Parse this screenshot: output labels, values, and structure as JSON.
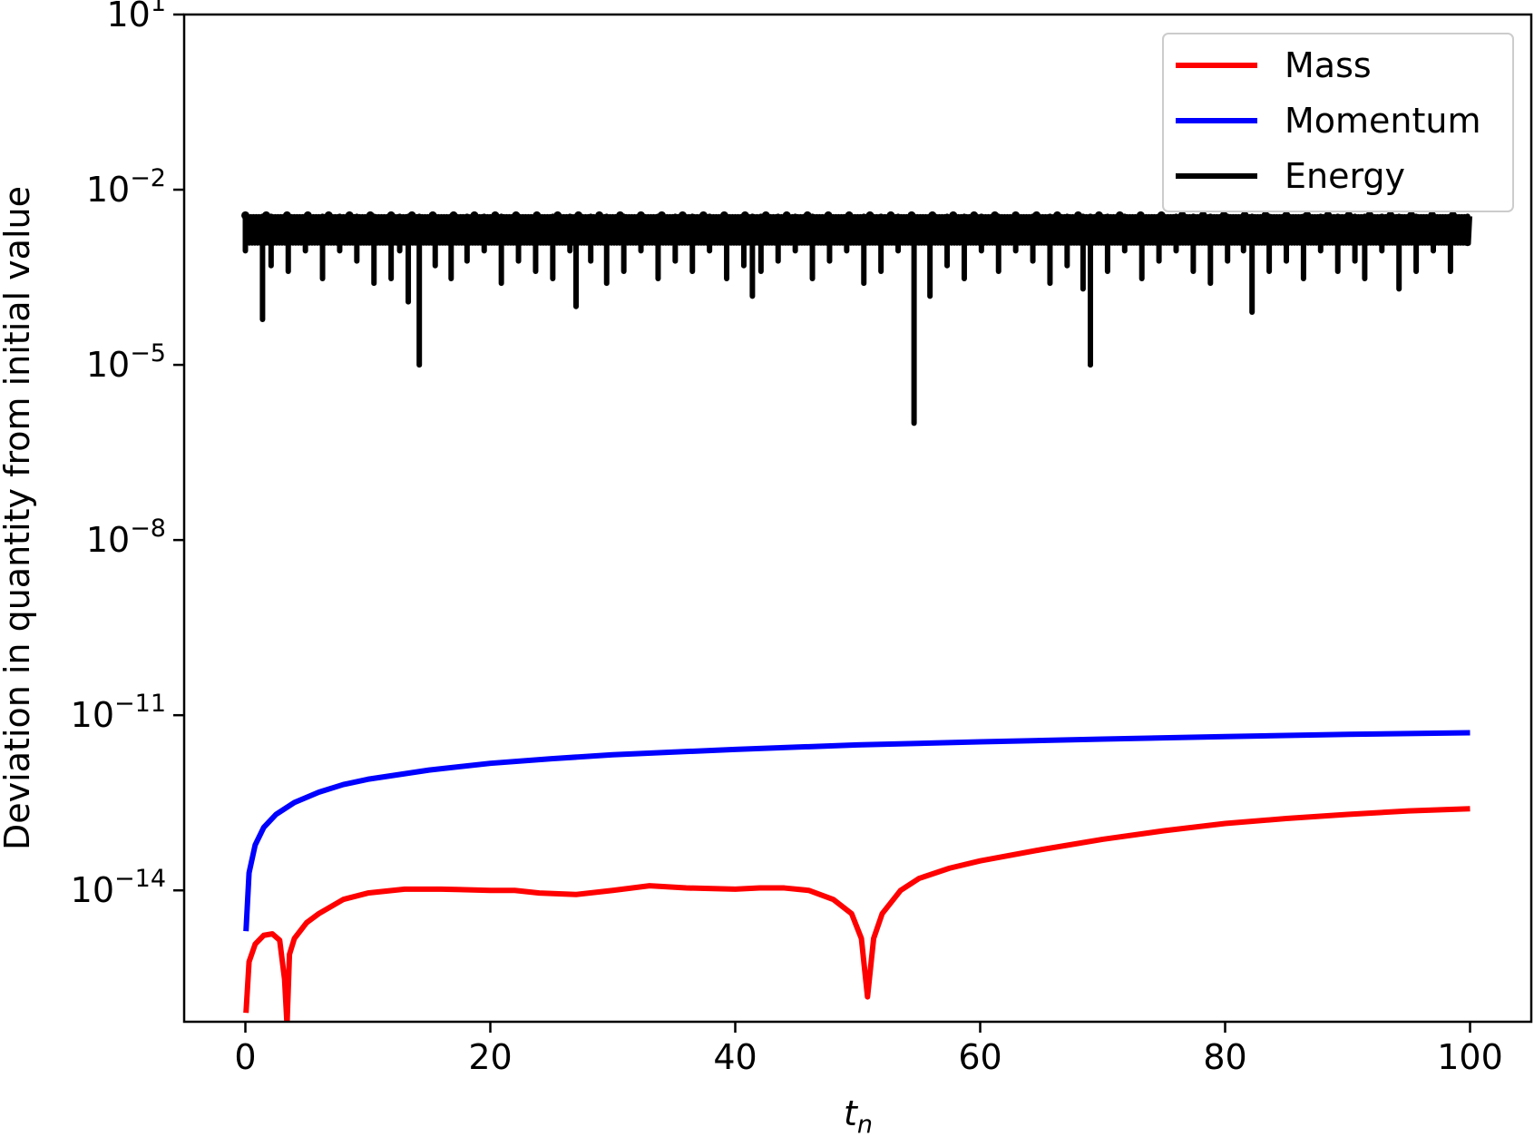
{
  "chart_data": {
    "type": "line",
    "title": "",
    "xlabel": "t",
    "xlabel_subscript": "n",
    "ylabel": "Deviation in quantity from initial value",
    "xlim": [
      -5,
      105
    ],
    "ylim_log10": [
      -16.25,
      1
    ],
    "y_scale": "log",
    "x_ticks": [
      0,
      20,
      40,
      60,
      80,
      100
    ],
    "x_tick_labels": [
      "0",
      "20",
      "40",
      "60",
      "80",
      "100"
    ],
    "y_ticks": [
      {
        "base": "10",
        "exp": "1",
        "log10": 1
      },
      {
        "base": "10",
        "exp": "−2",
        "log10": -2
      },
      {
        "base": "10",
        "exp": "−5",
        "log10": -5
      },
      {
        "base": "10",
        "exp": "−8",
        "log10": -8
      },
      {
        "base": "10",
        "exp": "−11",
        "log10": -11
      },
      {
        "base": "10",
        "exp": "−14",
        "log10": -14
      }
    ],
    "grid": false,
    "legend_placement": "top-right",
    "series": [
      {
        "name": "Mass",
        "color": "#ff0000",
        "x": [
          0.05,
          0.3,
          0.8,
          1.5,
          2.2,
          2.8,
          3.2,
          3.4,
          3.6,
          4,
          5,
          6,
          8,
          10,
          13,
          16,
          20,
          22,
          24,
          27,
          30,
          33,
          36,
          40,
          42,
          44,
          46,
          48,
          49.5,
          50.3,
          50.8,
          51.3,
          52,
          53.5,
          55,
          57.5,
          60,
          65,
          70,
          75,
          80,
          85,
          90,
          95,
          100
        ],
        "y": [
          8e-17,
          6e-16,
          1.2e-15,
          1.7e-15,
          1.8e-15,
          1.4e-15,
          3e-16,
          5e-17,
          8e-16,
          1.5e-15,
          2.8e-15,
          4e-15,
          7e-15,
          9e-15,
          1.05e-14,
          1.05e-14,
          1e-14,
          1e-14,
          9e-15,
          8.5e-15,
          1e-14,
          1.2e-14,
          1.1e-14,
          1.05e-14,
          1.1e-14,
          1.1e-14,
          1e-14,
          7e-15,
          4e-15,
          1.5e-15,
          1.5e-16,
          1.5e-15,
          4e-15,
          1e-14,
          1.6e-14,
          2.4e-14,
          3.2e-14,
          5e-14,
          7.5e-14,
          1.05e-13,
          1.4e-13,
          1.7e-13,
          2e-13,
          2.3e-13,
          2.5e-13
        ]
      },
      {
        "name": "Momentum",
        "color": "#0000ff",
        "x": [
          0.05,
          0.3,
          0.8,
          1.5,
          2.5,
          4,
          6,
          8,
          10,
          15,
          20,
          25,
          30,
          40,
          50,
          60,
          70,
          80,
          90,
          100
        ],
        "y": [
          2e-15,
          2e-14,
          6e-14,
          1.2e-13,
          2e-13,
          3.2e-13,
          4.8e-13,
          6.5e-13,
          8e-13,
          1.15e-12,
          1.5e-12,
          1.8e-12,
          2.1e-12,
          2.6e-12,
          3.1e-12,
          3.5e-12,
          3.9e-12,
          4.3e-12,
          4.7e-12,
          5e-12
        ]
      },
      {
        "name": "Energy",
        "color": "#000000",
        "upper": 0.0035,
        "lower": 0.0012,
        "x": [
          0,
          1.4,
          2.1,
          3.5,
          4.9,
          6.3,
          7.7,
          9.1,
          10.5,
          11.9,
          12.6,
          13.3,
          14.2,
          15.5,
          16.8,
          18.1,
          19.5,
          20.9,
          22.3,
          23.7,
          25.1,
          26.5,
          27,
          28.2,
          29.5,
          30.9,
          32.3,
          33.7,
          35.1,
          36.5,
          37.9,
          39.3,
          40.7,
          41.4,
          42.1,
          43.5,
          44.9,
          46.3,
          47.7,
          49.1,
          50.5,
          51.9,
          53.3,
          54.6,
          55.9,
          57.3,
          58.7,
          60.1,
          61.5,
          62.9,
          64.3,
          65.7,
          67.1,
          68.4,
          69,
          70.4,
          71.8,
          73.2,
          74.6,
          76,
          77.4,
          78.8,
          80.2,
          81.5,
          82.2,
          83.6,
          85,
          86.4,
          87.8,
          89.2,
          90.6,
          91.4,
          92.8,
          94.2,
          95.6,
          97,
          98.4,
          99.8
        ],
        "dips": [
          0.0009,
          6e-05,
          0.0005,
          0.0004,
          0.0009,
          0.0003,
          0.0009,
          0.0006,
          0.00025,
          0.0003,
          0.0009,
          0.00012,
          1e-05,
          0.0005,
          0.0003,
          0.0006,
          0.0009,
          0.00025,
          0.0006,
          0.0004,
          0.0003,
          0.0009,
          0.0001,
          0.0006,
          0.00025,
          0.0004,
          0.0009,
          0.0003,
          0.0006,
          0.0004,
          0.0009,
          0.0003,
          0.0005,
          0.00015,
          0.0004,
          0.0006,
          0.0009,
          0.0003,
          0.0006,
          0.0009,
          0.00025,
          0.0004,
          0.0009,
          1e-06,
          0.00015,
          0.0005,
          0.0003,
          0.0009,
          0.0004,
          0.0009,
          0.0006,
          0.00025,
          0.0005,
          0.0002,
          1e-05,
          0.0004,
          0.0009,
          0.0003,
          0.0006,
          0.0009,
          0.0004,
          0.00025,
          0.0006,
          0.0009,
          8e-05,
          0.0004,
          0.0006,
          0.0003,
          0.0009,
          0.0004,
          0.0006,
          0.0003,
          0.0009,
          0.0002,
          0.0004,
          0.0009,
          0.0004,
          0.0012
        ]
      }
    ]
  }
}
